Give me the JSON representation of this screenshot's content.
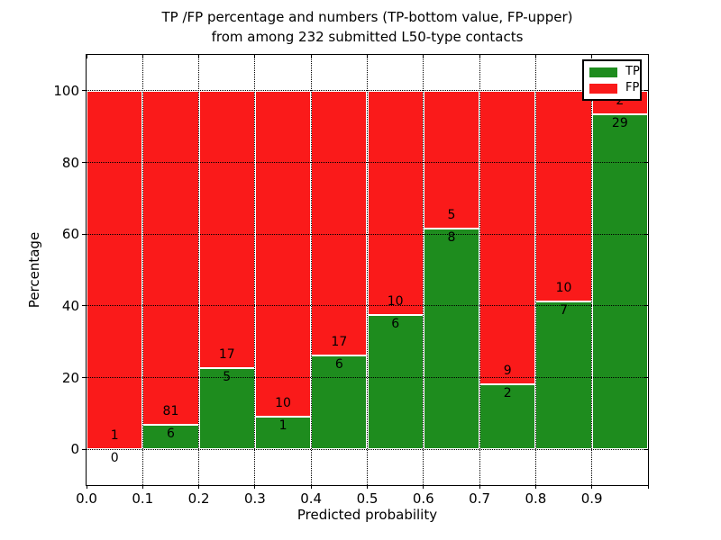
{
  "title": {
    "line1": "TP /FP percentage and numbers (TP-bottom value, FP-upper)",
    "line2": "from among 232 submitted L50-type contacts"
  },
  "chart_data": {
    "type": "bar",
    "stacked": true,
    "normalized": "each bar scaled to 100%, segment counts shown as labels",
    "title": "TP /FP percentage and numbers (TP-bottom value, FP-upper) from among 232 submitted L50-type contacts",
    "xlabel": "Predicted probability",
    "ylabel": "Percentage",
    "bins": {
      "start": 0.0,
      "width": 0.1,
      "count": 10
    },
    "series": [
      {
        "name": "TP",
        "color": "#1e8c1e",
        "values": [
          0,
          6,
          5,
          1,
          6,
          6,
          8,
          2,
          7,
          29
        ]
      },
      {
        "name": "FP",
        "color": "#fa1a1a",
        "values": [
          1,
          81,
          17,
          10,
          17,
          10,
          5,
          9,
          10,
          2
        ]
      }
    ],
    "xlim": [
      0.0,
      1.0
    ],
    "ylim": [
      -10,
      110
    ],
    "xticks": {
      "values": [
        0.0,
        0.1,
        0.2,
        0.3,
        0.4,
        0.5,
        0.6,
        0.7,
        0.8,
        0.9
      ],
      "labels": [
        "0.0",
        "0.1",
        "0.2",
        "0.3",
        "0.4",
        "0.5",
        "0.6",
        "0.7",
        "0.8",
        "0.9"
      ]
    },
    "yticks": {
      "values": [
        0,
        20,
        40,
        60,
        80,
        100
      ],
      "labels": [
        "0",
        "20",
        "40",
        "60",
        "80",
        "100"
      ]
    },
    "grid": "dotted, both axes",
    "legend": {
      "position": "upper-right",
      "entries": [
        {
          "label": "TP",
          "color": "#1e8c1e"
        },
        {
          "label": "FP",
          "color": "#fa1a1a"
        }
      ]
    },
    "colors": {
      "tp_green": "#1e8c1e",
      "fp_red": "#fa1a1a",
      "frame": "#000000",
      "background": "#ffffff"
    }
  }
}
